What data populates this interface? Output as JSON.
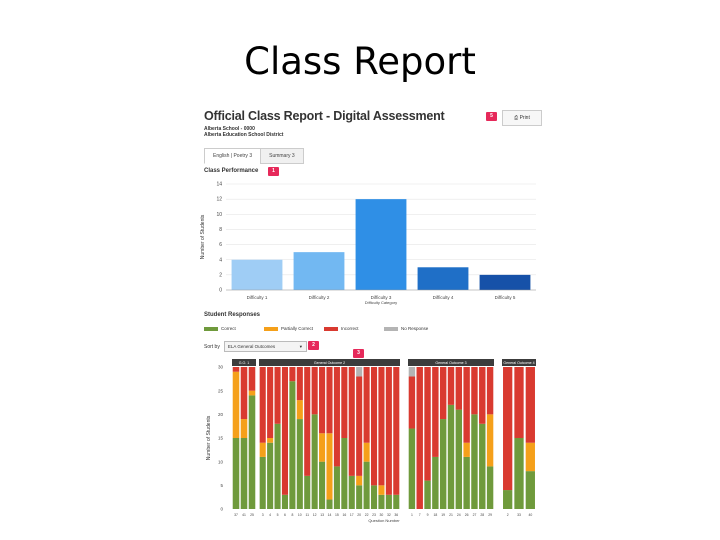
{
  "slide": {
    "title": "Class Report"
  },
  "report": {
    "title": "Official Class Report - Digital Assessment",
    "school": "Alberta School - 0000",
    "district": "Alberta Education School District",
    "print_label": "Print",
    "print_icon": "printer-icon"
  },
  "badges": {
    "b1": "1",
    "b2": "2",
    "b3": "3",
    "b5": "5"
  },
  "tabs": [
    {
      "label": "English | Poetry 3",
      "active": true
    },
    {
      "label": "Summary 3",
      "active": false
    }
  ],
  "class_performance": {
    "heading": "Class Performance",
    "ylabel": "Number of Students",
    "xlabel": "Difficulty Category",
    "ylim": [
      0,
      14
    ],
    "yticks": [
      0,
      2,
      4,
      6,
      8,
      10,
      12,
      14
    ],
    "categories": [
      "Difficulty 1",
      "Difficulty 2",
      "Difficulty 3",
      "Difficulty 4",
      "Difficulty 5"
    ],
    "values": [
      4,
      5,
      12,
      3,
      2
    ],
    "colors": [
      "#9fcdf5",
      "#72b8f2",
      "#2f8fe6",
      "#1f6fc7",
      "#1651a8"
    ]
  },
  "student_responses": {
    "heading": "Student Responses",
    "legend": [
      {
        "label": "Correct",
        "color": "#6f9a3c"
      },
      {
        "label": "Partially Correct",
        "color": "#f5a01a"
      },
      {
        "label": "Incorrect",
        "color": "#d93a30"
      },
      {
        "label": "No Response",
        "color": "#b4b4b4"
      }
    ],
    "sort_label": "Sort by",
    "sort_value": "ELA General Outcomes",
    "ylabel": "Number of Students",
    "xlabel": "Question Number",
    "ylim": [
      0,
      30
    ],
    "yticks": [
      0,
      5,
      10,
      15,
      20,
      25,
      30
    ]
  },
  "chart_data": {
    "type": "bar",
    "title": "Student Responses",
    "xlabel": "Question Number",
    "ylabel": "Number of Students",
    "ylim": [
      0,
      30
    ],
    "stacked": true,
    "groups": [
      {
        "name": "G.O. 1",
        "categories": [
          "37",
          "41",
          "25"
        ]
      },
      {
        "name": "General Outcome 2",
        "categories": [
          "3",
          "4",
          "5",
          "6",
          "8",
          "10",
          "11",
          "12",
          "13",
          "14",
          "15",
          "16",
          "17",
          "20",
          "22",
          "23",
          "30",
          "32",
          "36"
        ]
      },
      {
        "name": "General Outcome 3",
        "categories": [
          "1",
          "7",
          "9",
          "18",
          "19",
          "21",
          "24",
          "26",
          "27",
          "28",
          "29"
        ]
      },
      {
        "name": "General Outcome 4",
        "categories": [
          "2",
          "33",
          "40"
        ]
      }
    ],
    "series": [
      {
        "name": "Correct",
        "values": [
          15,
          15,
          24,
          11,
          14,
          18,
          3,
          27,
          19,
          7,
          20,
          10,
          2,
          9,
          15,
          7,
          5,
          10,
          5,
          3,
          3,
          3,
          17,
          0,
          6,
          11,
          19,
          22,
          21,
          11,
          20,
          18,
          9,
          4,
          15,
          8,
          24
        ]
      },
      {
        "name": "Partially Correct",
        "values": [
          14,
          4,
          1,
          3,
          1,
          0,
          0,
          0,
          4,
          0,
          0,
          6,
          14,
          0,
          0,
          0,
          2,
          4,
          0,
          2,
          0,
          0,
          0,
          0,
          0,
          0,
          0,
          0,
          0,
          3,
          0,
          0,
          11,
          0,
          0,
          6,
          0
        ]
      },
      {
        "name": "Incorrect",
        "values": [
          1,
          11,
          5,
          16,
          15,
          12,
          27,
          3,
          7,
          23,
          10,
          14,
          14,
          21,
          15,
          23,
          21,
          16,
          25,
          25,
          27,
          27,
          11,
          30,
          24,
          19,
          11,
          8,
          9,
          16,
          10,
          12,
          10,
          26,
          15,
          16,
          6
        ]
      },
      {
        "name": "No Response",
        "values": [
          0,
          0,
          0,
          0,
          0,
          0,
          0,
          0,
          0,
          0,
          0,
          0,
          0,
          0,
          0,
          0,
          2,
          0,
          0,
          0,
          0,
          0,
          2,
          0,
          0,
          0,
          0,
          0,
          0,
          0,
          0,
          0,
          0,
          0,
          0,
          0,
          0
        ]
      }
    ]
  }
}
